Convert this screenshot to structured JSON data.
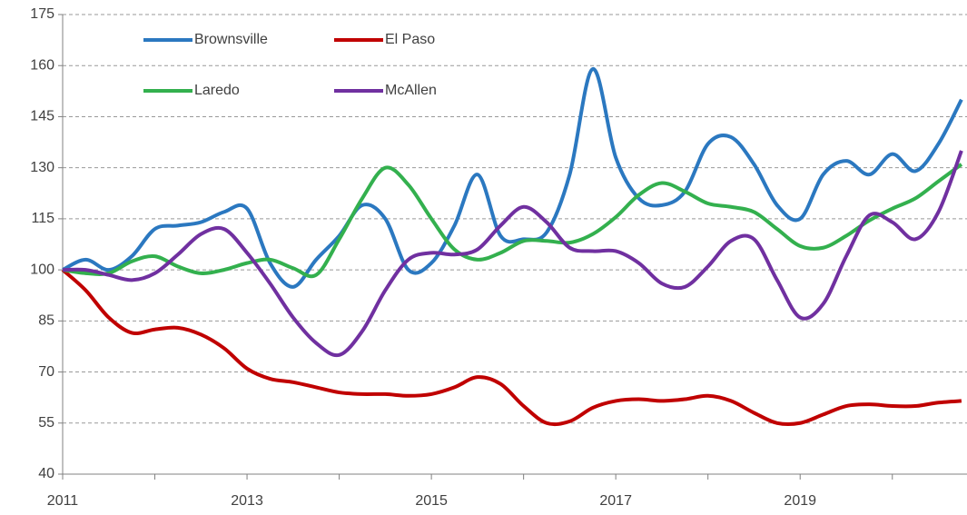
{
  "chart_data": {
    "type": "line",
    "x": [
      2011,
      2011.25,
      2011.5,
      2011.75,
      2012,
      2012.25,
      2012.5,
      2012.75,
      2013,
      2013.25,
      2013.5,
      2013.75,
      2014,
      2014.25,
      2014.5,
      2014.75,
      2015,
      2015.25,
      2015.5,
      2015.75,
      2016,
      2016.25,
      2016.5,
      2016.75,
      2017,
      2017.25,
      2017.5,
      2017.75,
      2018,
      2018.25,
      2018.5,
      2018.75,
      2019,
      2019.25,
      2019.5,
      2019.75,
      2020,
      2020.25,
      2020.5,
      2020.75
    ],
    "series": [
      {
        "name": "Brownsville",
        "color": "#2b78c0",
        "values": [
          100,
          103,
          100,
          104,
          112,
          113,
          114,
          117,
          118,
          102,
          95,
          103,
          110,
          119,
          115,
          100,
          102,
          113,
          128,
          110,
          109,
          111,
          128,
          159,
          133,
          121,
          119,
          123,
          137,
          139,
          131,
          119,
          115,
          128,
          132,
          128,
          134,
          129,
          137,
          150
        ]
      },
      {
        "name": "El Paso",
        "color": "#c00000",
        "values": [
          100,
          94,
          86,
          81.5,
          82.5,
          83,
          81,
          77,
          71,
          68,
          67,
          65.5,
          64,
          63.5,
          63.5,
          63,
          63.5,
          65.5,
          68.5,
          66.5,
          60,
          55,
          55.5,
          59.5,
          61.5,
          62,
          61.5,
          62,
          63,
          61.5,
          58,
          55,
          55,
          57.5,
          60,
          60.5,
          60,
          60,
          61,
          61.5
        ]
      },
      {
        "name": "Laredo",
        "color": "#33b04e",
        "values": [
          100,
          99,
          99,
          102.5,
          104,
          101,
          99,
          100,
          102,
          103,
          100.5,
          98.5,
          109,
          121,
          130,
          125,
          115,
          106,
          103,
          105,
          108.5,
          108.5,
          108,
          110.5,
          115.5,
          122,
          125.5,
          123,
          119.5,
          118.5,
          117,
          112,
          107,
          106.5,
          110,
          114.5,
          118,
          121,
          126,
          131
        ]
      },
      {
        "name": "McAllen",
        "color": "#7030a0",
        "values": [
          100,
          100,
          98.5,
          97,
          99,
          104.5,
          110.5,
          112,
          105,
          96,
          86,
          78.5,
          75,
          82,
          94,
          103,
          105,
          104.5,
          106,
          113,
          118.5,
          114,
          106.5,
          105.5,
          105.5,
          102,
          96,
          95,
          101,
          108.5,
          109,
          97,
          86,
          90,
          104,
          116,
          114,
          109,
          117,
          135
        ]
      }
    ],
    "xlim": [
      2011,
      2020.81
    ],
    "xticks": [
      2011,
      2013,
      2015,
      2017,
      2019
    ],
    "xminorticks": [
      2012,
      2014,
      2016,
      2018,
      2020
    ],
    "ylim": [
      40,
      175
    ],
    "yticks": [
      40,
      55,
      70,
      85,
      100,
      115,
      130,
      145,
      160,
      175
    ],
    "grid": true
  }
}
